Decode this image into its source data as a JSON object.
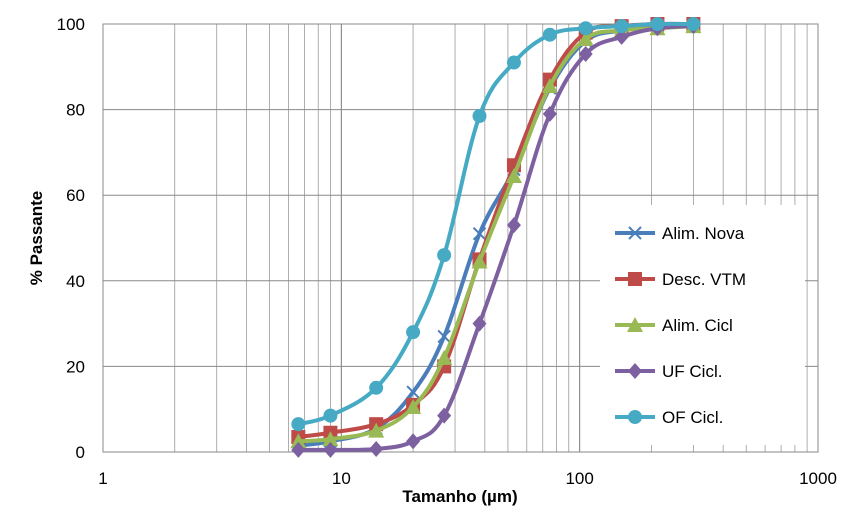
{
  "chart_data": {
    "type": "line",
    "xscale": "log",
    "xlabel": "Tamanho (µm)",
    "ylabel": "% Passante",
    "xlim": [
      1,
      1000
    ],
    "ylim": [
      0,
      100
    ],
    "x_ticks": [
      1,
      10,
      100,
      1000
    ],
    "x_tick_labels": [
      "1",
      "10",
      "100",
      "1000"
    ],
    "y_ticks": [
      0,
      20,
      40,
      60,
      80,
      100
    ],
    "y_tick_labels": [
      "0",
      "20",
      "40",
      "60",
      "80",
      "100"
    ],
    "grid": true,
    "legend_position": "right",
    "series": [
      {
        "name": "Alim. Nova",
        "color": "#4a7ebb",
        "marker": "x",
        "x": [
          6.6,
          9,
          14,
          20,
          27,
          38,
          53,
          75,
          106,
          150,
          212,
          300
        ],
        "y": [
          1.5,
          2.5,
          5.5,
          14,
          27,
          51,
          66,
          85,
          96,
          98.5,
          99.5,
          100
        ]
      },
      {
        "name": "Desc. VTM",
        "color": "#be4b48",
        "marker": "square",
        "x": [
          6.6,
          9,
          14,
          20,
          27,
          38,
          53,
          75,
          106,
          150,
          212,
          300
        ],
        "y": [
          3.5,
          4.5,
          6.5,
          11,
          20,
          45,
          67,
          87,
          98,
          99.5,
          100,
          100
        ]
      },
      {
        "name": "Alim. Cicl",
        "color": "#98b954",
        "marker": "triangle",
        "x": [
          6.6,
          9,
          14,
          20,
          27,
          38,
          53,
          75,
          106,
          150,
          212,
          300
        ],
        "y": [
          2.5,
          3,
          5,
          10.5,
          22,
          44.5,
          64.5,
          85.5,
          96.5,
          98.5,
          99,
          99.5
        ]
      },
      {
        "name": "UF Cicl.",
        "color": "#7d60a0",
        "marker": "diamond",
        "x": [
          6.6,
          9,
          14,
          20,
          27,
          38,
          53,
          75,
          106,
          150,
          212,
          300
        ],
        "y": [
          0.5,
          0.5,
          0.7,
          2.5,
          8.5,
          30,
          53,
          79,
          93,
          97,
          99,
          99.5
        ]
      },
      {
        "name": "OF Cicl.",
        "color": "#46aac5",
        "marker": "circle",
        "x": [
          6.6,
          9,
          14,
          20,
          27,
          38,
          53,
          75,
          106,
          150,
          212,
          300
        ],
        "y": [
          6.5,
          8.5,
          15,
          28,
          46,
          78.5,
          91,
          97.5,
          99,
          99.5,
          100,
          100
        ]
      }
    ]
  }
}
